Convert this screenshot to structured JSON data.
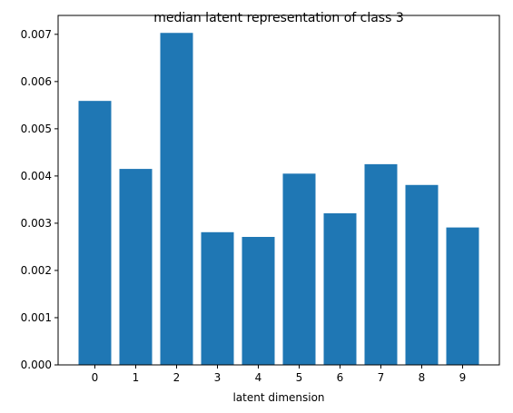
{
  "chart_data": {
    "type": "bar",
    "title": "median latent representation of class 3",
    "xlabel": "latent dimension",
    "ylabel": "",
    "categories": [
      "0",
      "1",
      "2",
      "3",
      "4",
      "5",
      "6",
      "7",
      "8",
      "9"
    ],
    "values": [
      0.00559,
      0.00415,
      0.00703,
      0.00281,
      0.00271,
      0.00405,
      0.00321,
      0.00425,
      0.00381,
      0.00291
    ],
    "ylim": [
      0,
      0.0074
    ],
    "yticks": [
      "0.000",
      "0.001",
      "0.002",
      "0.003",
      "0.004",
      "0.005",
      "0.006",
      "0.007"
    ],
    "bar_color": "#1f77b4",
    "grid": false,
    "legend": "none"
  }
}
